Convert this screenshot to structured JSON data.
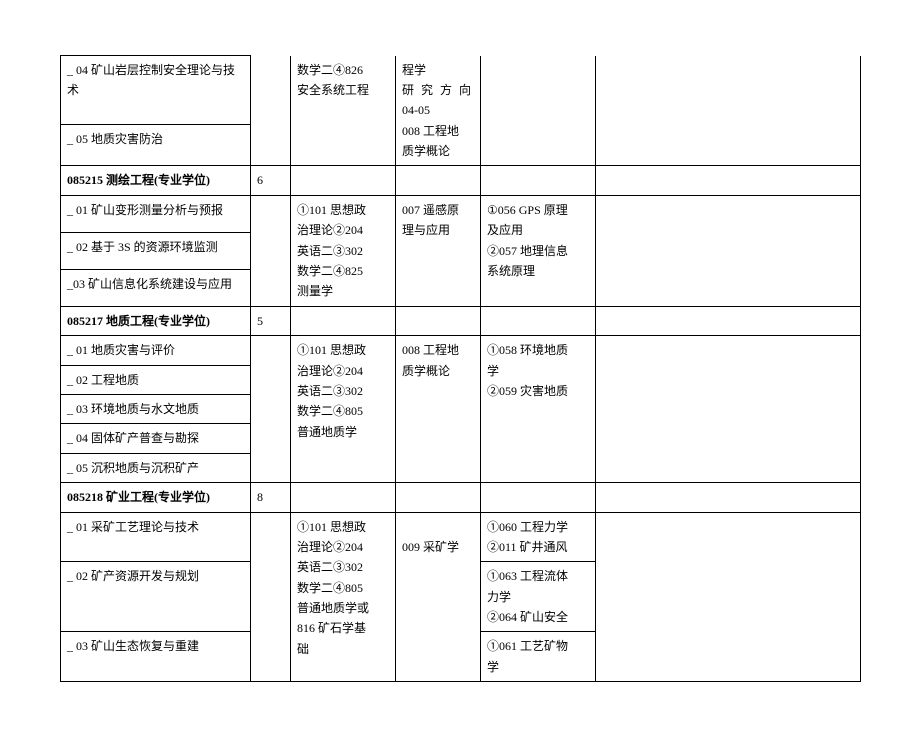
{
  "r1": {
    "c1": "_ 04 矿山岩层控制安全理论与技术",
    "c3a": "数学二④826",
    "c3b": "安全系统工程",
    "c4a": "程学",
    "c4b": "研 究 方 向",
    "c4c": "04-05",
    "c4d": "008 工程地",
    "c4e": "质学概论"
  },
  "r2": {
    "c1": "_ 05 地质灾害防治"
  },
  "r3": {
    "c1": "085215 测绘工程(专业学位)",
    "c2": "6"
  },
  "r4": {
    "c1": "_ 01 矿山变形测量分析与预报",
    "c3a": "①101 思想政",
    "c3b": "治理论②204",
    "c3c": "英语二③302",
    "c3d": "数学二④825",
    "c3e": "测量学",
    "c4a": "007 遥感原",
    "c4b": "理与应用",
    "c5a": "①056 GPS 原理",
    "c5b": "及应用",
    "c5c": "②057 地理信息",
    "c5d": "系统原理"
  },
  "r5": {
    "c1": "_ 02 基于 3S 的资源环境监测"
  },
  "r6": {
    "c1": "_03 矿山信息化系统建设与应用"
  },
  "r7": {
    "c1": "085217 地质工程(专业学位)",
    "c2": "5"
  },
  "r8": {
    "c1": "_ 01 地质灾害与评价",
    "c3a": "①101 思想政",
    "c3b": "治理论②204",
    "c3c": "英语二③302",
    "c3d": "数学二④805",
    "c3e": "普通地质学",
    "c4a": "008 工程地",
    "c4b": "质学概论",
    "c5a": "①058 环境地质",
    "c5b": "学",
    "c5c": "②059 灾害地质"
  },
  "r9": {
    "c1": "_ 02 工程地质"
  },
  "r10": {
    "c1": "_ 03 环境地质与水文地质"
  },
  "r11": {
    "c1": "_ 04 固体矿产普查与勘探"
  },
  "r12": {
    "c1": "_ 05 沉积地质与沉积矿产"
  },
  "r13": {
    "c1": "085218 矿业工程(专业学位)",
    "c2": "8"
  },
  "r14": {
    "c1": "_ 01 采矿工艺理论与技术",
    "c3a": "①101 思想政",
    "c3b": "治理论②204",
    "c3c": "英语二③302",
    "c3d": "数学二④805",
    "c3e": "普通地质学或",
    "c3f": "816 矿石学基",
    "c3g": "础",
    "c4": "009 采矿学",
    "c5a": "①060 工程力学",
    "c5b": "②011 矿井通风"
  },
  "r15": {
    "c1": "_ 02 矿产资源开发与规划",
    "c5a": "①063 工程流体",
    "c5b": "力学",
    "c5c": "②064 矿山安全"
  },
  "r16": {
    "c1": "_ 03 矿山生态恢复与重建",
    "c5a": "①061 工艺矿物",
    "c5b": "学"
  }
}
